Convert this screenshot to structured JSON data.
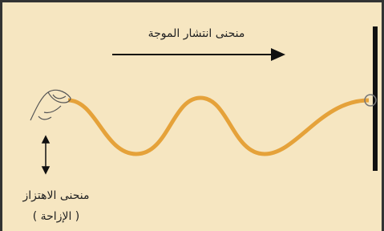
{
  "labels": {
    "propagation": "منحنى انتشار الموجة",
    "vibration": "منحنى الاهتزاز",
    "displacement": "( الإزاحة )"
  }
}
